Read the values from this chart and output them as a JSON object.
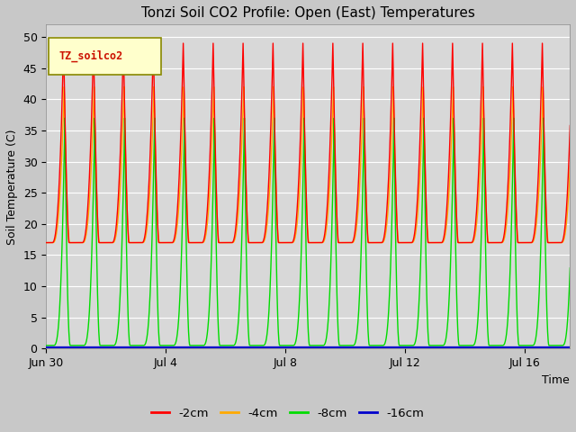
{
  "title": "Tonzi Soil CO2 Profile: Open (East) Temperatures",
  "ylabel": "Soil Temperature (C)",
  "xlabel": "Time",
  "legend_label": "TZ_soilco2",
  "ylim": [
    0,
    52
  ],
  "series_labels": [
    "-2cm",
    "-4cm",
    "-8cm",
    "-16cm"
  ],
  "series_colors": [
    "#ff0000",
    "#ffaa00",
    "#00dd00",
    "#0000cc"
  ],
  "tick_dates": [
    "Jun 30",
    "Jul 4",
    "Jul 8",
    "Jul 12",
    "Jul 16"
  ],
  "tick_positions": [
    0,
    4,
    8,
    12,
    16
  ],
  "title_fontsize": 11,
  "label_fontsize": 9,
  "tick_fontsize": 9,
  "fig_bg": "#c8c8c8",
  "plot_bg": "#d8d8d8"
}
